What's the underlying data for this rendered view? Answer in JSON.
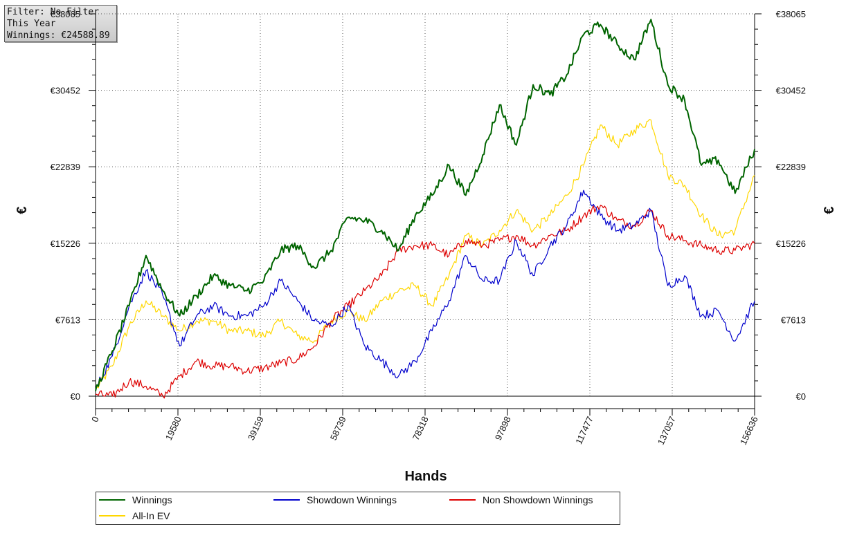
{
  "info": {
    "filter": "Filter: No Filter",
    "period": "This Year",
    "winnings": "Winnings: €24588.89"
  },
  "chart_data": {
    "type": "line",
    "title": "",
    "xlabel": "Hands",
    "ylabel": "€",
    "xlim": [
      0,
      156636
    ],
    "ylim": [
      0,
      38065
    ],
    "x_ticks": [
      "0",
      "19580",
      "39159",
      "58739",
      "78318",
      "97898",
      "117477",
      "137057",
      "156636"
    ],
    "y_ticks": [
      "€0",
      "€7613",
      "€15226",
      "€22839",
      "€30452",
      "€38065"
    ],
    "grid": true,
    "legend_position": "bottom",
    "x": [
      0,
      4000,
      8000,
      12000,
      16000,
      20000,
      24000,
      28000,
      32000,
      36000,
      40000,
      44000,
      48000,
      52000,
      56000,
      60000,
      64000,
      68000,
      72000,
      76000,
      80000,
      84000,
      88000,
      92000,
      96000,
      100000,
      104000,
      108000,
      112000,
      116000,
      120000,
      124000,
      128000,
      132000,
      136000,
      140000,
      144000,
      148000,
      152000,
      156636
    ],
    "series": [
      {
        "name": "Winnings",
        "color": "#006400",
        "values": [
          500,
          4500,
          9000,
          14000,
          10500,
          8000,
          10000,
          12000,
          11000,
          10500,
          11500,
          14500,
          15000,
          12800,
          14500,
          17800,
          17500,
          16500,
          14500,
          18000,
          20000,
          23000,
          20000,
          24000,
          29000,
          25000,
          31000,
          30000,
          32000,
          36000,
          37000,
          35000,
          33500,
          37500,
          31000,
          29500,
          23000,
          23500,
          20200,
          24588
        ]
      },
      {
        "name": "Showdown Winnings",
        "color": "#0000cc",
        "values": [
          700,
          4000,
          9000,
          12500,
          10000,
          5000,
          8000,
          9000,
          8000,
          8000,
          9000,
          11500,
          9500,
          7500,
          7000,
          9000,
          5000,
          3500,
          2000,
          3500,
          6500,
          9500,
          14000,
          11500,
          11500,
          15500,
          12000,
          15000,
          17000,
          20500,
          18000,
          16500,
          17000,
          18500,
          11000,
          12000,
          8000,
          8500,
          5500,
          9500
        ]
      },
      {
        "name": "Non Showdown Winnings",
        "color": "#dd0000",
        "values": [
          200,
          0,
          1500,
          1000,
          0,
          2000,
          3500,
          3000,
          3000,
          2500,
          2800,
          3300,
          3700,
          5000,
          7500,
          9000,
          10500,
          12000,
          14500,
          15000,
          15000,
          14000,
          15500,
          15000,
          15500,
          16000,
          15000,
          16000,
          16500,
          18000,
          19000,
          17500,
          17000,
          18500,
          16000,
          15500,
          15000,
          14500,
          14500,
          15200
        ]
      },
      {
        "name": "All-In EV",
        "color": "#ffd700",
        "values": [
          600,
          3000,
          7000,
          9500,
          8000,
          6500,
          7500,
          7500,
          6500,
          6500,
          6000,
          7500,
          6000,
          5500,
          7500,
          8500,
          7500,
          9500,
          10500,
          11000,
          9000,
          12000,
          16000,
          15000,
          16500,
          18500,
          16500,
          18000,
          20000,
          23000,
          27000,
          25000,
          26500,
          27500,
          22000,
          21000,
          18000,
          16000,
          16500,
          22000
        ]
      }
    ]
  }
}
